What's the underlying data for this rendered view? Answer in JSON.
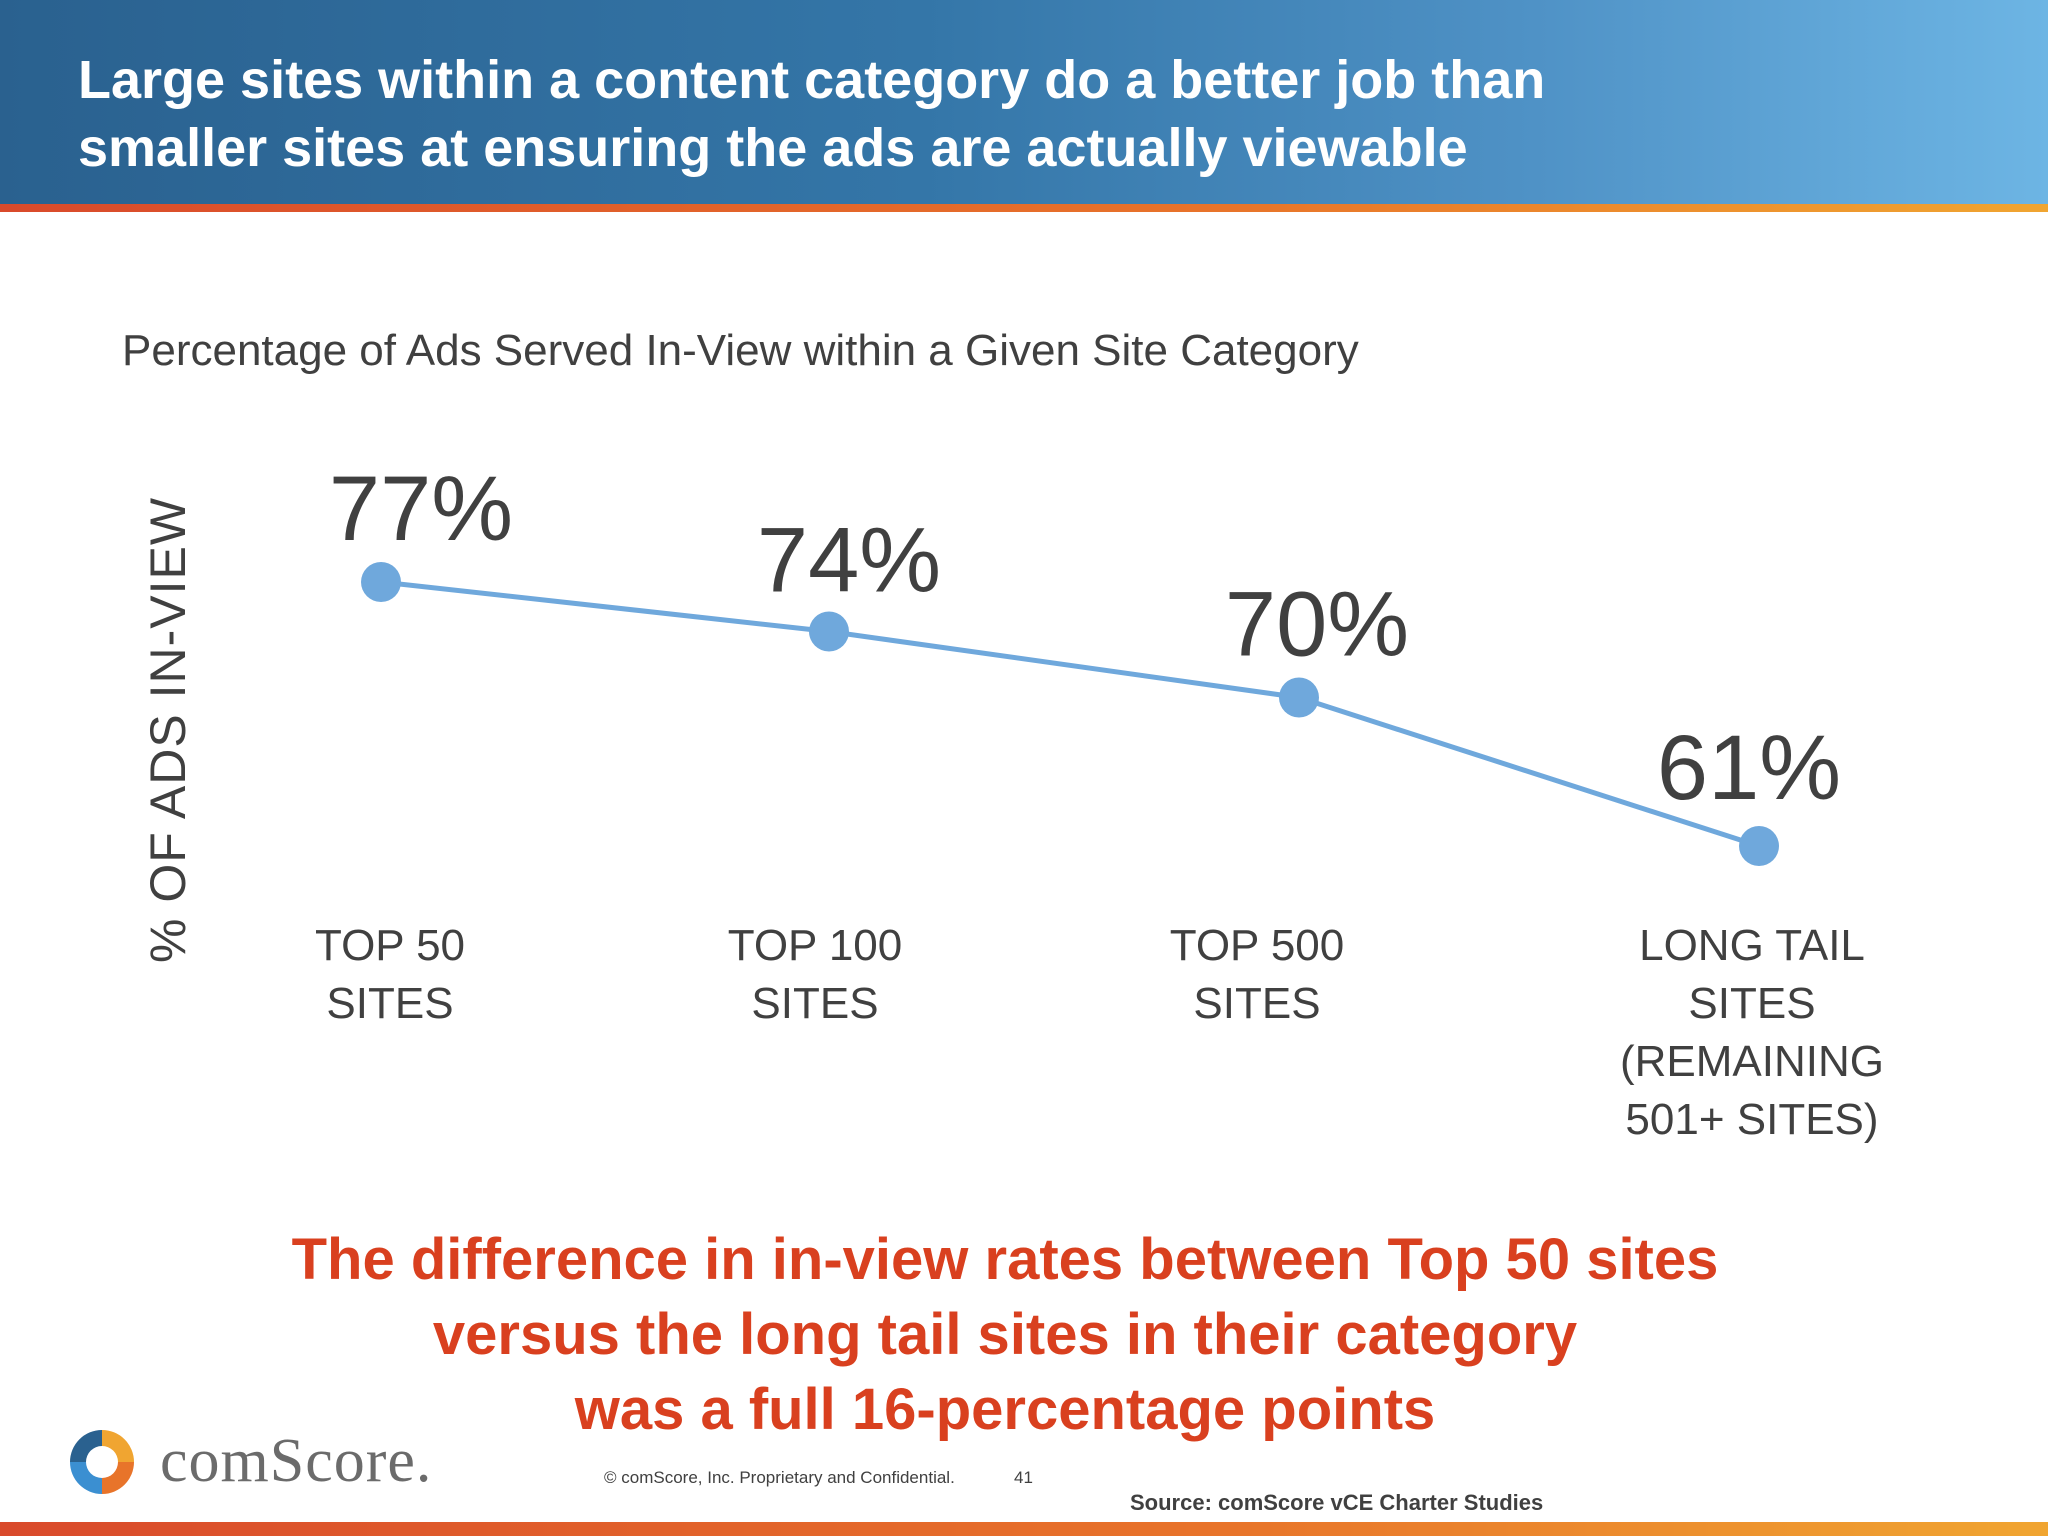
{
  "header": {
    "title_line1": "Large sites within a content category do a better job than",
    "title_line2": "smaller sites at ensuring the ads are actually viewable"
  },
  "chart_data": {
    "type": "line",
    "title": "Percentage of Ads Served In-View within a Given Site Category",
    "ylabel": "% OF ADS IN-VIEW",
    "xlabel": "",
    "categories": [
      [
        "TOP 50",
        "SITES"
      ],
      [
        "TOP 100",
        "SITES"
      ],
      [
        "TOP 500",
        "SITES"
      ],
      [
        "LONG TAIL",
        "SITES",
        "(REMAINING",
        "501+ SITES)"
      ]
    ],
    "values": [
      77,
      74,
      70,
      61
    ],
    "value_labels": [
      "77%",
      "74%",
      "70%",
      "61%"
    ],
    "grid": false,
    "legend": "none",
    "colors": {
      "line": "#6fa8dc",
      "marker": "#6fa8dc",
      "text": "#404040"
    }
  },
  "callout": {
    "line1": "The difference in in-view rates between Top 50 sites",
    "line2": "versus the long tail sites in their category",
    "line3": "was a full 16-percentage points"
  },
  "footer": {
    "logo_text": "comScore.",
    "copyright": "© comScore, Inc.  Proprietary and Confidential.",
    "page_number": "41",
    "source": "Source: comScore vCE Charter Studies"
  },
  "colors": {
    "header_blue": "#3476a8",
    "accent_orange": "#e8742a",
    "callout_red": "#d9401f"
  }
}
